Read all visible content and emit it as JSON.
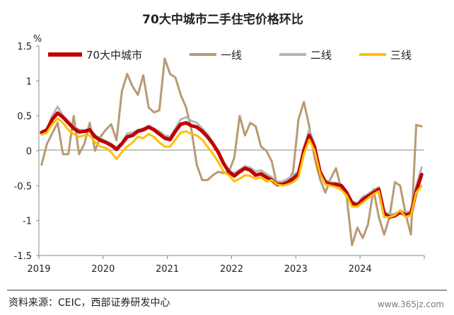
{
  "chart_data": {
    "type": "line",
    "title": "70大中城市二手住宅价格环比",
    "ylabel": "%",
    "xlabel": "",
    "ylim": [
      -1.5,
      1.5
    ],
    "yticks": [
      "1.5",
      "1",
      "0.5",
      "0",
      "-0.5",
      "-1",
      "-1.5"
    ],
    "xticks": [
      "2019",
      "2020",
      "2021",
      "2022",
      "2023",
      "2024"
    ],
    "x_range": [
      "2019-01",
      "2024-12"
    ],
    "legend_position": "top",
    "grid": false,
    "series": [
      {
        "name": "70大中城市",
        "color": "#c00000",
        "width": 5,
        "values": [
          0.26,
          0.3,
          0.45,
          0.54,
          0.48,
          0.4,
          0.32,
          0.27,
          0.28,
          0.3,
          0.2,
          0.15,
          0.12,
          0.08,
          0.02,
          0.1,
          0.2,
          0.22,
          0.28,
          0.3,
          0.34,
          0.3,
          0.24,
          0.18,
          0.16,
          0.28,
          0.38,
          0.4,
          0.36,
          0.34,
          0.28,
          0.2,
          0.1,
          -0.02,
          -0.18,
          -0.3,
          -0.36,
          -0.3,
          -0.25,
          -0.28,
          -0.35,
          -0.33,
          -0.38,
          -0.42,
          -0.48,
          -0.48,
          -0.45,
          -0.4,
          -0.33,
          0.0,
          0.22,
          0.05,
          -0.3,
          -0.45,
          -0.48,
          -0.48,
          -0.5,
          -0.6,
          -0.75,
          -0.78,
          -0.7,
          -0.65,
          -0.6,
          -0.55,
          -0.9,
          -0.95,
          -0.93,
          -0.88,
          -0.92,
          -0.9,
          -0.58,
          -0.34
        ]
      },
      {
        "name": "一线",
        "color": "#b89a73",
        "width": 3,
        "values": [
          -0.2,
          0.1,
          0.25,
          0.4,
          -0.05,
          -0.05,
          0.5,
          -0.05,
          0.1,
          0.4,
          0.0,
          0.2,
          0.3,
          0.38,
          0.15,
          0.85,
          1.1,
          0.92,
          0.8,
          1.08,
          0.62,
          0.55,
          0.58,
          1.32,
          1.1,
          1.05,
          0.8,
          0.62,
          0.3,
          -0.2,
          -0.42,
          -0.42,
          -0.35,
          -0.3,
          -0.32,
          -0.3,
          -0.1,
          0.5,
          0.22,
          0.4,
          0.35,
          0.06,
          0.0,
          -0.15,
          -0.5,
          -0.48,
          -0.45,
          -0.3,
          0.45,
          0.7,
          0.35,
          -0.1,
          -0.4,
          -0.6,
          -0.4,
          -0.25,
          -0.55,
          -0.65,
          -1.35,
          -1.1,
          -1.25,
          -1.05,
          -0.55,
          -0.95,
          -1.2,
          -0.95,
          -0.45,
          -0.5,
          -0.9,
          -1.2,
          0.37,
          0.35
        ]
      },
      {
        "name": "二线",
        "color": "#b5b5b5",
        "width": 3,
        "values": [
          0.28,
          0.3,
          0.5,
          0.63,
          0.5,
          0.42,
          0.35,
          0.3,
          0.28,
          0.3,
          0.22,
          0.18,
          0.14,
          0.1,
          0.05,
          0.12,
          0.25,
          0.26,
          0.3,
          0.32,
          0.36,
          0.32,
          0.28,
          0.22,
          0.2,
          0.32,
          0.45,
          0.48,
          0.43,
          0.4,
          0.32,
          0.24,
          0.12,
          0.0,
          -0.18,
          -0.28,
          -0.32,
          -0.27,
          -0.22,
          -0.24,
          -0.3,
          -0.28,
          -0.33,
          -0.38,
          -0.44,
          -0.44,
          -0.4,
          -0.35,
          -0.3,
          0.05,
          0.3,
          0.1,
          -0.28,
          -0.42,
          -0.45,
          -0.46,
          -0.48,
          -0.58,
          -0.72,
          -0.75,
          -0.66,
          -0.62,
          -0.56,
          -0.52,
          -0.86,
          -0.92,
          -0.9,
          -0.86,
          -0.88,
          -0.86,
          -0.5,
          -0.24
        ]
      },
      {
        "name": "三线",
        "color": "#ffc000",
        "width": 3,
        "values": [
          0.23,
          0.26,
          0.38,
          0.46,
          0.4,
          0.3,
          0.24,
          0.2,
          0.22,
          0.22,
          0.12,
          0.06,
          0.04,
          -0.02,
          -0.12,
          -0.02,
          0.06,
          0.12,
          0.2,
          0.18,
          0.24,
          0.2,
          0.12,
          0.06,
          0.06,
          0.16,
          0.26,
          0.28,
          0.24,
          0.22,
          0.16,
          0.06,
          -0.04,
          -0.16,
          -0.3,
          -0.35,
          -0.44,
          -0.4,
          -0.35,
          -0.36,
          -0.4,
          -0.38,
          -0.44,
          -0.42,
          -0.48,
          -0.5,
          -0.48,
          -0.45,
          -0.38,
          -0.05,
          0.16,
          0.0,
          -0.32,
          -0.48,
          -0.5,
          -0.52,
          -0.56,
          -0.64,
          -0.8,
          -0.8,
          -0.74,
          -0.68,
          -0.62,
          -0.58,
          -0.95,
          -0.95,
          -0.92,
          -0.85,
          -0.95,
          -0.92,
          -0.6,
          -0.5
        ]
      }
    ]
  },
  "source": "资料来源：CEIC，西部证券研发中心",
  "watermark": "www.365jz.com"
}
